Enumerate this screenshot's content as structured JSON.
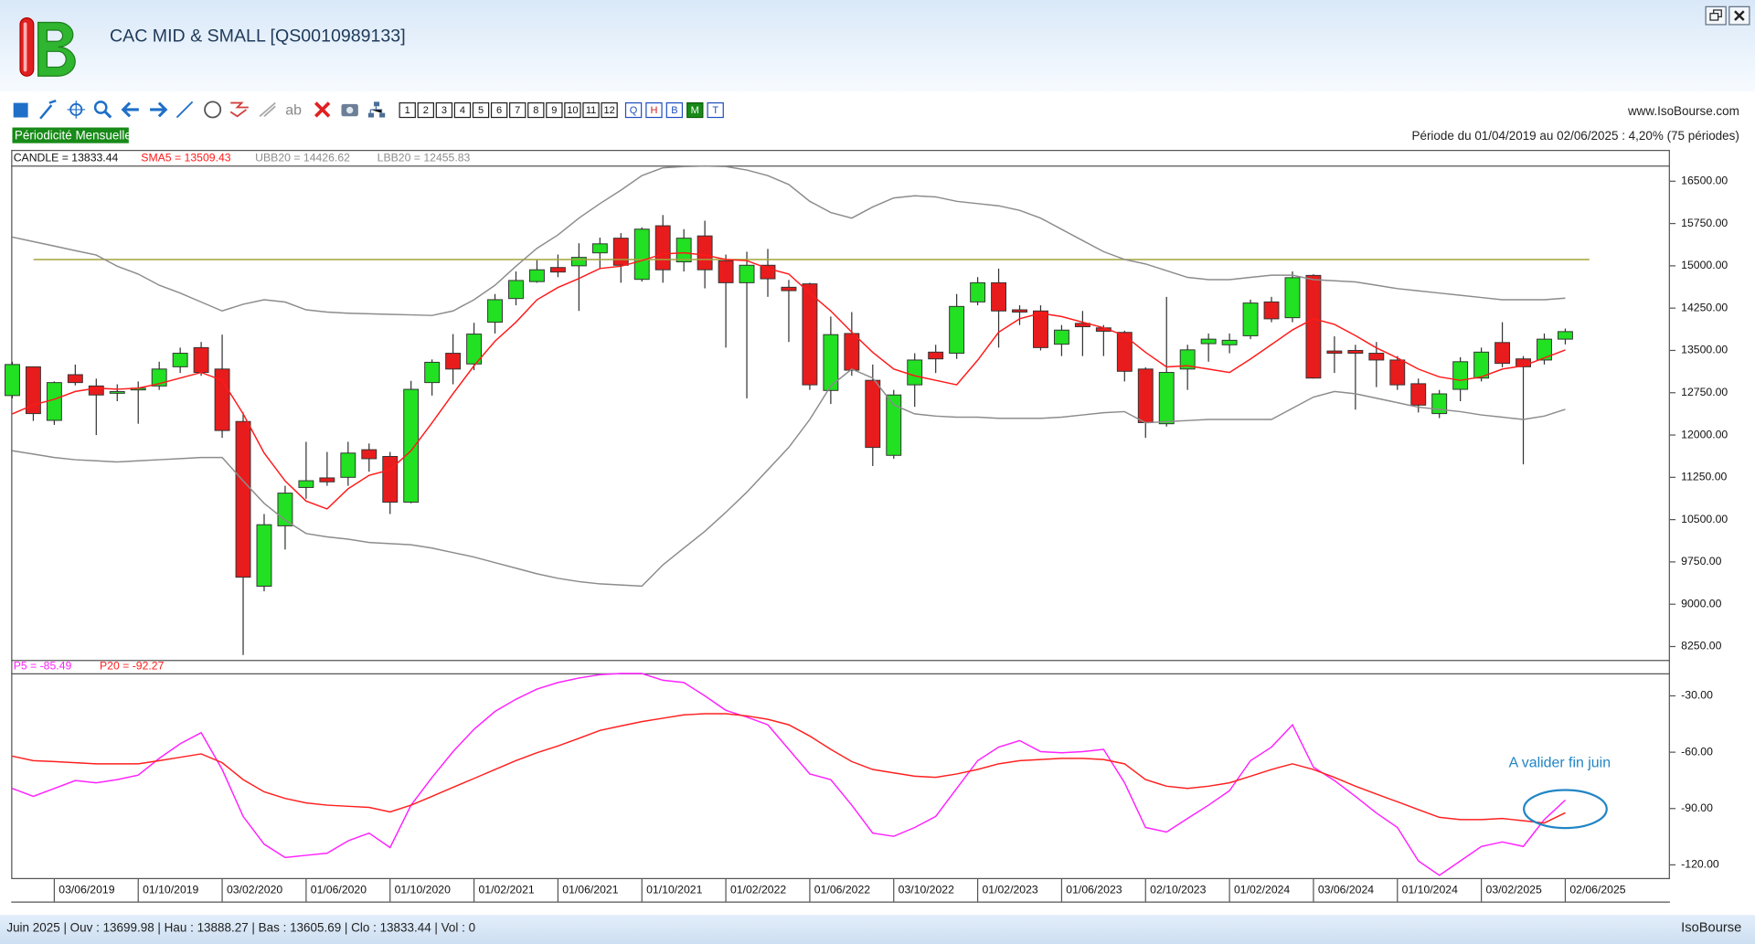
{
  "window": {
    "title": "CAC MID & SMALL [QS0010989133]",
    "website": "www.IsoBourse.com",
    "period_info": "Période du 01/04/2019 au 02/06/2025 : 4,20% (75 périodes)",
    "periodicity": "Périodicité Mensuelle",
    "text_tool": "ab",
    "period_buttons": [
      "1",
      "2",
      "3",
      "4",
      "5",
      "6",
      "7",
      "8",
      "9",
      "10",
      "11",
      "12"
    ],
    "view_buttons": [
      "Q",
      "H",
      "B",
      "M",
      "T"
    ],
    "active_view": "M",
    "status": "Juin 2025 | Ouv : 13699.98 | Hau : 13888.27 | Bas : 13605.69 | Clo : 13833.44 | Vol : 0",
    "brand": "IsoBourse"
  },
  "chart_data": [
    {
      "type": "candlestick",
      "candle_label": "CANDLE = 13833.44",
      "categories": [
        null,
        null,
        "03/06/2019",
        null,
        null,
        null,
        "01/10/2019",
        null,
        null,
        null,
        "03/02/2020",
        null,
        null,
        null,
        "01/06/2020",
        null,
        null,
        null,
        "01/10/2020",
        null,
        null,
        null,
        "01/02/2021",
        null,
        null,
        null,
        "01/06/2021",
        null,
        null,
        null,
        "01/10/2021",
        null,
        null,
        null,
        "01/02/2022",
        null,
        null,
        null,
        "01/06/2022",
        null,
        null,
        null,
        "03/10/2022",
        null,
        null,
        null,
        "01/02/2023",
        null,
        null,
        null,
        "01/06/2023",
        null,
        null,
        null,
        "02/10/2023",
        null,
        null,
        null,
        "01/02/2024",
        null,
        null,
        null,
        "03/06/2024",
        null,
        null,
        null,
        "01/10/2024",
        null,
        null,
        null,
        "03/02/2025",
        null,
        null,
        null,
        "02/06/2025"
      ],
      "open": [
        12700,
        13210,
        12260,
        13070,
        12870,
        12740,
        12800,
        12870,
        13210,
        13550,
        13170,
        12240,
        9320,
        10390,
        11070,
        11240,
        11250,
        11740,
        11620,
        10810,
        12930,
        13450,
        13260,
        14000,
        14420,
        14720,
        14970,
        15000,
        15230,
        15490,
        14760,
        15710,
        15070,
        15530,
        15090,
        14700,
        15010,
        14620,
        14680,
        12790,
        13800,
        12970,
        11640,
        12890,
        13470,
        13450,
        14360,
        14700,
        14220,
        14200,
        13610,
        13980,
        13900,
        13820,
        13170,
        12200,
        13170,
        13620,
        13600,
        13760,
        14360,
        14080,
        14830,
        13490,
        13500,
        13450,
        13330,
        12910,
        12380,
        12810,
        13010,
        13640,
        13350,
        13330,
        13699.98
      ],
      "high": [
        13300,
        13210,
        12950,
        13250,
        13000,
        12900,
        12950,
        13300,
        13550,
        13650,
        13780,
        12400,
        10600,
        11100,
        11880,
        11700,
        11880,
        11850,
        11700,
        12960,
        13340,
        13790,
        13990,
        14500,
        14900,
        15100,
        15200,
        15400,
        15500,
        15580,
        15680,
        15900,
        15650,
        15800,
        15200,
        15250,
        15300,
        14750,
        14700,
        14100,
        14180,
        13250,
        12800,
        13450,
        13600,
        14500,
        14800,
        14950,
        14300,
        14300,
        13950,
        14200,
        13950,
        13850,
        13200,
        14450,
        13600,
        13800,
        13800,
        14400,
        14450,
        14900,
        14850,
        13750,
        13600,
        13650,
        13400,
        13000,
        12800,
        13380,
        13550,
        14000,
        13400,
        13800,
        13888.27
      ],
      "low": [
        12650,
        12250,
        12180,
        12880,
        12000,
        12600,
        12200,
        12800,
        13100,
        13050,
        11950,
        8100,
        9230,
        9970,
        10870,
        11100,
        11100,
        11350,
        10600,
        10790,
        12700,
        12900,
        13150,
        13800,
        14300,
        14700,
        14800,
        14200,
        14950,
        14700,
        14720,
        14700,
        14900,
        14600,
        13550,
        12650,
        14450,
        13650,
        12800,
        12550,
        13050,
        11450,
        11580,
        12500,
        13100,
        13350,
        14300,
        13550,
        13950,
        13500,
        13400,
        13400,
        13400,
        12950,
        11950,
        12150,
        12800,
        13300,
        13450,
        13700,
        14000,
        14000,
        13000,
        13100,
        12450,
        12850,
        12800,
        12400,
        12300,
        12600,
        12950,
        13200,
        11480,
        13250,
        13605.69
      ],
      "close": [
        13250,
        12380,
        12930,
        12930,
        12710,
        12770,
        12830,
        13170,
        13450,
        13110,
        12080,
        9480,
        10410,
        10970,
        11190,
        11170,
        11680,
        11580,
        10810,
        12810,
        13290,
        13170,
        13790,
        14400,
        14740,
        14930,
        14890,
        15150,
        15390,
        15010,
        15650,
        14930,
        15490,
        14930,
        14700,
        15010,
        14770,
        14560,
        12890,
        13780,
        13150,
        11780,
        12710,
        13330,
        13350,
        14280,
        14700,
        14200,
        14180,
        13550,
        13860,
        13920,
        13840,
        13130,
        12220,
        13110,
        13510,
        13700,
        13680,
        14340,
        14060,
        14790,
        13010,
        13450,
        13450,
        13330,
        12890,
        12530,
        12730,
        13300,
        13470,
        13270,
        13210,
        13700,
        13833.44
      ],
      "up_color": "#22e022",
      "down_color": "#e81c1c",
      "series": [
        {
          "name": "SMA5 = 13509.43",
          "color": "#ff1a1a",
          "values": [
            12375,
            12534,
            12633,
            12772,
            12831,
            12812,
            12831,
            12911,
            13010,
            13109,
            12970,
            12375,
            11681,
            11186,
            10829,
            10690,
            11047,
            11285,
            11384,
            11721,
            12217,
            12732,
            13228,
            13664,
            14001,
            14398,
            14616,
            14775,
            14953,
            14993,
            15092,
            15211,
            15231,
            15191,
            15112,
            15092,
            14953,
            14854,
            14517,
            14200,
            13823,
            13466,
            13169,
            13050,
            12970,
            12891,
            13327,
            13823,
            14061,
            14160,
            14101,
            14001,
            13902,
            13763,
            13466,
            13208,
            13228,
            13169,
            13109,
            13347,
            13605,
            13863,
            14061,
            13962,
            13763,
            13545,
            13367,
            13169,
            13030,
            12970,
            13030,
            13169,
            13228,
            13367,
            13509.43
          ]
        },
        {
          "name": "UBB20 = 14426.62",
          "color": "#8c8c8c",
          "values": [
            15509,
            15430,
            15350,
            15270,
            15191,
            14993,
            14854,
            14656,
            14517,
            14358,
            14200,
            14319,
            14398,
            14358,
            14220,
            14180,
            14160,
            14150,
            14140,
            14130,
            14120,
            14200,
            14398,
            14656,
            14993,
            15310,
            15548,
            15846,
            16103,
            16341,
            16599,
            16738,
            16760,
            16770,
            16760,
            16698,
            16599,
            16441,
            16143,
            15945,
            15846,
            16044,
            16203,
            16242,
            16222,
            16143,
            16103,
            16064,
            15984,
            15846,
            15647,
            15449,
            15251,
            15112,
            15033,
            14914,
            14795,
            14755,
            14755,
            14795,
            14834,
            14834,
            14755,
            14735,
            14715,
            14656,
            14596,
            14557,
            14517,
            14477,
            14438,
            14398,
            14398,
            14398,
            14426.62
          ]
        },
        {
          "name": "LBB20 = 12455.83",
          "color": "#8c8c8c",
          "values": [
            11721,
            11662,
            11602,
            11562,
            11543,
            11523,
            11543,
            11562,
            11582,
            11602,
            11602,
            11186,
            10789,
            10492,
            10254,
            10194,
            10154,
            10095,
            10075,
            10055,
            9996,
            9916,
            9837,
            9738,
            9639,
            9540,
            9460,
            9401,
            9361,
            9341,
            9321,
            9698,
            9996,
            10293,
            10630,
            10987,
            11384,
            11781,
            12276,
            12871,
            13169,
            13010,
            12534,
            12375,
            12336,
            12316,
            12316,
            12296,
            12296,
            12296,
            12316,
            12356,
            12395,
            12415,
            12217,
            12237,
            12257,
            12276,
            12276,
            12276,
            12276,
            12475,
            12673,
            12772,
            12732,
            12653,
            12574,
            12494,
            12455,
            12415,
            12356,
            12316,
            12276,
            12336,
            12455.83
          ]
        }
      ],
      "hline": {
        "value": 15112,
        "color": "#a3a33c"
      },
      "ylim": [
        8013,
        16778
      ],
      "yticks": [
        {
          "value": 16500,
          "label": "16500.00"
        },
        {
          "value": 15750,
          "label": "15750.00"
        },
        {
          "value": 15000,
          "label": "15000.00"
        },
        {
          "value": 14250,
          "label": "14250.00"
        },
        {
          "value": 13500,
          "label": "13500.00"
        },
        {
          "value": 12750,
          "label": "12750.00"
        },
        {
          "value": 12000,
          "label": "12000.00"
        },
        {
          "value": 11250,
          "label": "11250.00"
        },
        {
          "value": 10500,
          "label": "10500.00"
        },
        {
          "value": 9750,
          "label": "9750.00"
        },
        {
          "value": 9000,
          "label": "9000.00"
        },
        {
          "value": 8250,
          "label": "8250.00"
        }
      ]
    },
    {
      "type": "line",
      "series": [
        {
          "name": "P5 = -85.49",
          "color": "#ff22ff",
          "values": [
            -79.3,
            -83.5,
            -79.3,
            -75.1,
            -76.3,
            -74.6,
            -72.2,
            -63.3,
            -55.5,
            -49.6,
            -69.2,
            -94.2,
            -109.0,
            -116.1,
            -114.9,
            -113.8,
            -107.2,
            -103.1,
            -110.8,
            -88.2,
            -73.4,
            -59.7,
            -47.8,
            -38.3,
            -31.8,
            -26.4,
            -22.9,
            -20.5,
            -18.7,
            -18.1,
            -18.1,
            -21.7,
            -22.9,
            -30,
            -37.7,
            -41.3,
            -45.4,
            -58.5,
            -71.6,
            -74.6,
            -88.2,
            -103.1,
            -104.8,
            -100.1,
            -94.2,
            -79.3,
            -64.5,
            -57.3,
            -53.8,
            -59.7,
            -60.3,
            -59.7,
            -58.5,
            -76.3,
            -100.1,
            -102.5,
            -95.3,
            -88.2,
            -80.5,
            -64.5,
            -57.3,
            -45.4,
            -68.0,
            -75.1,
            -83.5,
            -92.4,
            -100.1,
            -117.9,
            -125.6,
            -117.9,
            -110.2,
            -107.8,
            -110.2,
            -95.9,
            -85.49
          ]
        },
        {
          "name": "P20 = -92.27",
          "color": "#ff2020",
          "values": [
            -62.1,
            -64.5,
            -65.0,
            -65.6,
            -66.2,
            -66.2,
            -66.2,
            -64.5,
            -62.7,
            -60.9,
            -65.6,
            -74.6,
            -81.1,
            -84.6,
            -87.0,
            -88.2,
            -88.8,
            -89.4,
            -91.8,
            -88.2,
            -83.5,
            -78.7,
            -74.0,
            -69.2,
            -64.5,
            -60.3,
            -56.7,
            -52.6,
            -48.4,
            -46.0,
            -43.7,
            -41.9,
            -40.1,
            -39.5,
            -39.5,
            -40.7,
            -42.5,
            -45.4,
            -51.4,
            -58.5,
            -65.0,
            -69.2,
            -71.0,
            -72.8,
            -73.4,
            -71.6,
            -69.2,
            -66.2,
            -64.5,
            -63.9,
            -63.3,
            -63.3,
            -63.9,
            -66.2,
            -74.6,
            -78.1,
            -79.3,
            -78.1,
            -76.3,
            -72.8,
            -69.2,
            -66.2,
            -69.2,
            -73.4,
            -78.1,
            -82.3,
            -86.4,
            -90.6,
            -94.7,
            -95.9,
            -95.9,
            -95.3,
            -96.5,
            -97.7,
            -92.27
          ]
        }
      ],
      "annotation": {
        "text": "A valider fin juin",
        "color": "#2185c5"
      },
      "ylim": [
        -127,
        -18
      ],
      "yticks": [
        {
          "value": -30,
          "label": "-30.00"
        },
        {
          "value": -60,
          "label": "-60.00"
        },
        {
          "value": -90,
          "label": "-90.00"
        },
        {
          "value": -120,
          "label": "-120.00"
        }
      ]
    }
  ]
}
